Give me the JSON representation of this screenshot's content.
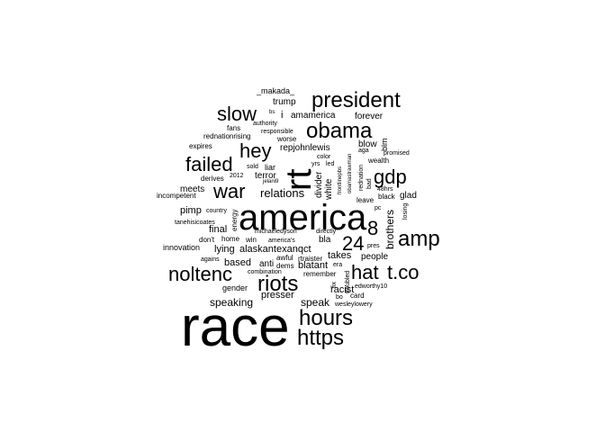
{
  "words": [
    {
      "text": "race",
      "color": "#000000",
      "weight": 1.0
    },
    {
      "text": "america",
      "color": "#000000",
      "weight": 0.62
    },
    {
      "text": "rt",
      "color": "#000000",
      "weight": 0.6
    },
    {
      "text": "riots",
      "color": "#000000",
      "weight": 0.32
    },
    {
      "text": "hours",
      "color": "#000000",
      "weight": 0.3
    },
    {
      "text": "https",
      "color": "#000000",
      "weight": 0.3
    },
    {
      "text": "amp",
      "color": "#000000",
      "weight": 0.32
    },
    {
      "text": "president",
      "color": "#000000",
      "weight": 0.3
    },
    {
      "text": "obama",
      "color": "#000000",
      "weight": 0.3
    },
    {
      "text": "slow",
      "color": "#000000",
      "weight": 0.28
    },
    {
      "text": "hey",
      "color": "#000000",
      "weight": 0.28
    },
    {
      "text": "failed",
      "color": "#000000",
      "weight": 0.28
    },
    {
      "text": "war",
      "color": "#000000",
      "weight": 0.28
    },
    {
      "text": "gdp",
      "color": "#000000",
      "weight": 0.28
    },
    {
      "text": "noltenc",
      "color": "#000000",
      "weight": 0.28
    },
    {
      "text": "hat",
      "color": "#000000",
      "weight": 0.28
    },
    {
      "text": "t.co",
      "color": "#000000",
      "weight": 0.28
    },
    {
      "text": "8",
      "color": "#000000",
      "weight": 0.28
    },
    {
      "text": "24",
      "color": "#000000",
      "weight": 0.28
    },
    {
      "text": "relations",
      "color": "#000000",
      "weight": 0.16
    },
    {
      "text": "brothers",
      "color": "#000000",
      "weight": 0.13
    },
    {
      "text": "people",
      "color": "#000000",
      "weight": 0.12
    },
    {
      "text": "takes",
      "color": "#000000",
      "weight": 0.12
    },
    {
      "text": "speak",
      "color": "#000000",
      "weight": 0.13
    },
    {
      "text": "speaking",
      "color": "#000000",
      "weight": 0.13
    },
    {
      "text": "presser",
      "color": "#000000",
      "weight": 0.13
    },
    {
      "text": "racist",
      "color": "#000000",
      "weight": 0.12
    },
    {
      "text": "lying",
      "color": "#000000",
      "weight": 0.12
    },
    {
      "text": "alaskantexanqct",
      "color": "#000000",
      "weight": 0.12
    },
    {
      "text": "based",
      "color": "#000000",
      "weight": 0.12
    },
    {
      "text": "anti",
      "color": "#000000",
      "weight": 0.11
    },
    {
      "text": "blatant",
      "color": "#000000",
      "weight": 0.12
    },
    {
      "text": "final",
      "color": "#000000",
      "weight": 0.12
    },
    {
      "text": "pimp",
      "color": "#000000",
      "weight": 0.12
    },
    {
      "text": "meets",
      "color": "#000000",
      "weight": 0.11
    },
    {
      "text": "trump",
      "color": "#000000",
      "weight": 0.11
    },
    {
      "text": "amamerica",
      "color": "#000000",
      "weight": 0.11
    },
    {
      "text": "forever",
      "color": "#000000",
      "weight": 0.11
    },
    {
      "text": "blow",
      "color": "#000000",
      "weight": 0.11
    },
    {
      "text": "repjohnlewis",
      "color": "#000000",
      "weight": 0.11
    },
    {
      "text": "glad",
      "color": "#000000",
      "weight": 0.11
    },
    {
      "text": "terror",
      "color": "#000000",
      "weight": 0.11
    },
    {
      "text": "bla",
      "color": "#000000",
      "weight": 0.11
    },
    {
      "text": "gender",
      "color": "#000000",
      "weight": 0.09
    },
    {
      "text": "innovation",
      "color": "#000000",
      "weight": 0.09
    },
    {
      "text": "_makada_",
      "color": "#000000",
      "weight": 0.09
    },
    {
      "text": "white",
      "color": "#000000",
      "weight": 0.1
    },
    {
      "text": "divider",
      "color": "#000000",
      "weight": 0.1
    },
    {
      "text": "i",
      "color": "#000000",
      "weight": 0.1
    },
    {
      "text": "liar",
      "color": "#000000",
      "weight": 0.09
    },
    {
      "text": "blm",
      "color": "#000000",
      "weight": 0.09
    },
    {
      "text": "worse",
      "color": "#000000",
      "weight": 0.08
    },
    {
      "text": "expires",
      "color": "#000000",
      "weight": 0.08
    },
    {
      "text": "fans",
      "color": "#000000",
      "weight": 0.08
    },
    {
      "text": "rednationrising",
      "color": "#000000",
      "weight": 0.08
    },
    {
      "text": "derives",
      "color": "#000000",
      "weight": 0.08
    },
    {
      "text": "incompetent",
      "color": "#000000",
      "weight": 0.08
    },
    {
      "text": "country",
      "color": "#000000",
      "weight": 0.07
    },
    {
      "text": "tanehisicoates",
      "color": "#000000",
      "weight": 0.07
    },
    {
      "text": "energy",
      "color": "#000000",
      "weight": 0.08
    },
    {
      "text": "home",
      "color": "#000000",
      "weight": 0.08
    },
    {
      "text": "don't",
      "color": "#000000",
      "weight": 0.08
    },
    {
      "text": "win",
      "color": "#000000",
      "weight": 0.08
    },
    {
      "text": "michaeledyson",
      "color": "#000000",
      "weight": 0.07
    },
    {
      "text": "america's",
      "color": "#000000",
      "weight": 0.07
    },
    {
      "text": "directly",
      "color": "#000000",
      "weight": 0.07
    },
    {
      "text": "agains",
      "color": "#000000",
      "weight": 0.07
    },
    {
      "text": "awful",
      "color": "#000000",
      "weight": 0.08
    },
    {
      "text": "dems",
      "color": "#000000",
      "weight": 0.08
    },
    {
      "text": "rtraister",
      "color": "#000000",
      "weight": 0.08
    },
    {
      "text": "combination",
      "color": "#000000",
      "weight": 0.07
    },
    {
      "text": "remember",
      "color": "#000000",
      "weight": 0.08
    },
    {
      "text": "era",
      "color": "#000000",
      "weight": 0.07
    },
    {
      "text": "fix",
      "color": "#000000",
      "weight": 0.07
    },
    {
      "text": "troubled",
      "color": "#000000",
      "weight": 0.07
    },
    {
      "text": "bo",
      "color": "#000000",
      "weight": 0.07
    },
    {
      "text": "card",
      "color": "#000000",
      "weight": 0.08
    },
    {
      "text": "edworthy10",
      "color": "#000000",
      "weight": 0.07
    },
    {
      "text": "wesleylowery",
      "color": "#000000",
      "weight": 0.07
    },
    {
      "text": "pres",
      "color": "#000000",
      "weight": 0.07
    },
    {
      "text": "losing",
      "color": "#000000",
      "weight": 0.07
    },
    {
      "text": "leave",
      "color": "#000000",
      "weight": 0.08
    },
    {
      "text": "pc",
      "color": "#000000",
      "weight": 0.07
    },
    {
      "text": "black",
      "color": "#000000",
      "weight": 0.08
    },
    {
      "text": "48hrs",
      "color": "#000000",
      "weight": 0.07
    },
    {
      "text": "bad",
      "color": "#000000",
      "weight": 0.07
    },
    {
      "text": "rednation",
      "color": "#000000",
      "weight": 0.07
    },
    {
      "text": "obamastrawman",
      "color": "#000000",
      "weight": 0.06
    },
    {
      "text": "frontlinepbs",
      "color": "#000000",
      "weight": 0.06
    },
    {
      "text": "wealth",
      "color": "#000000",
      "weight": 0.08
    },
    {
      "text": "promised",
      "color": "#000000",
      "weight": 0.07
    },
    {
      "text": "aga",
      "color": "#000000",
      "weight": 0.07
    },
    {
      "text": "yrs",
      "color": "#000000",
      "weight": 0.07
    },
    {
      "text": "led",
      "color": "#000000",
      "weight": 0.07
    },
    {
      "text": "color",
      "color": "#000000",
      "weight": 0.07
    },
    {
      "text": "2012",
      "color": "#000000",
      "weight": 0.07
    },
    {
      "text": "sold",
      "color": "#000000",
      "weight": 0.07
    },
    {
      "text": "jelani9",
      "color": "#000000",
      "weight": 0.06
    },
    {
      "text": "authority",
      "color": "#000000",
      "weight": 0.07
    },
    {
      "text": "responsible",
      "color": "#000000",
      "weight": 0.07
    },
    {
      "text": "bs",
      "color": "#000000",
      "weight": 0.06
    }
  ]
}
